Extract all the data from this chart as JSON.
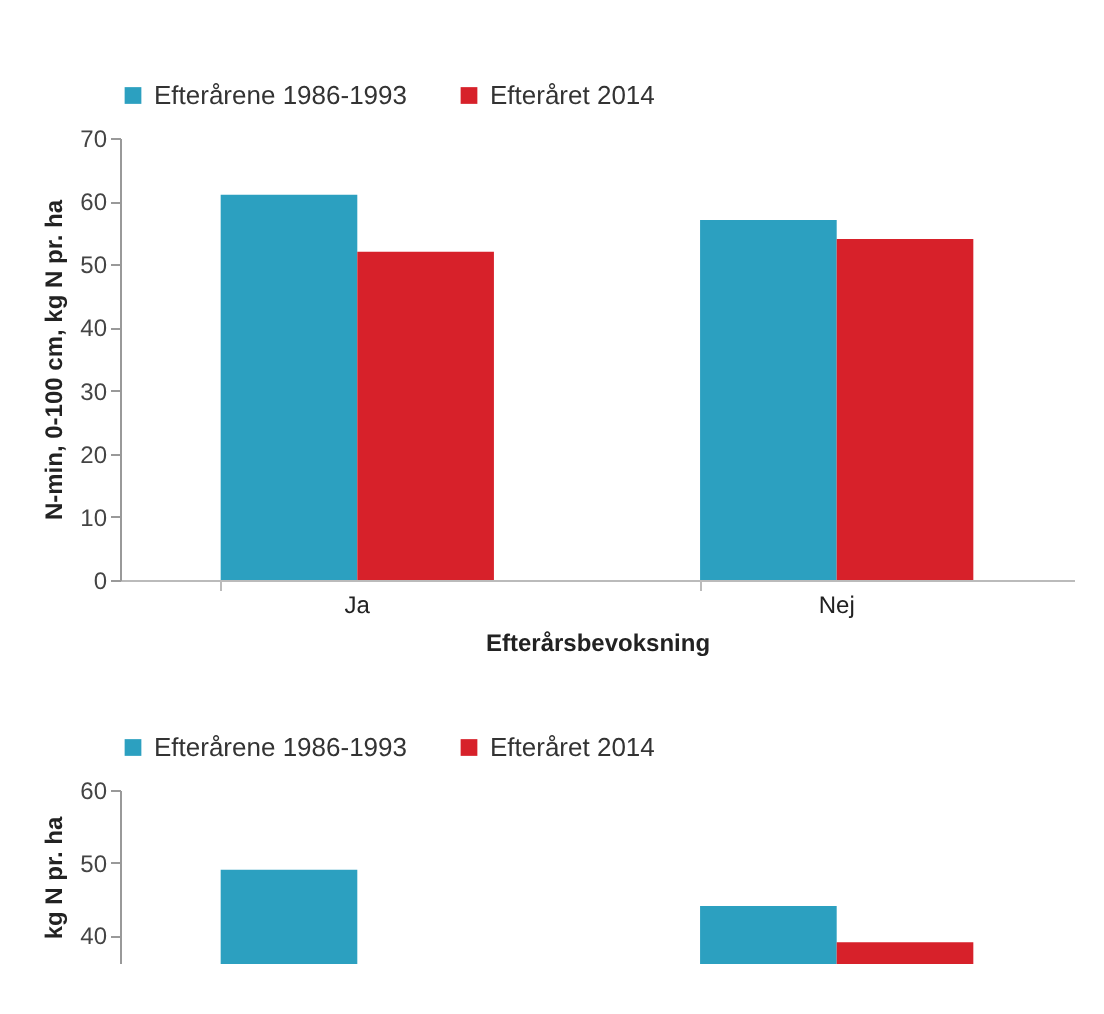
{
  "chart_data": [
    {
      "type": "bar",
      "categories": [
        "Ja",
        "Nej"
      ],
      "xlabel": "Efterårsbevoksning",
      "ylabel": "N-min, 0-100 cm, kg N pr. ha",
      "ylim": [
        0,
        70
      ],
      "yticks": [
        0,
        10,
        20,
        30,
        40,
        50,
        60,
        70
      ],
      "grid": false,
      "legend": "top",
      "series": [
        {
          "name": "Efterårene 1986-1993",
          "color": "#2ca0c0",
          "values": [
            61,
            57
          ]
        },
        {
          "name": "Efteråret 2014",
          "color": "#d7212a",
          "values": [
            52,
            54
          ]
        }
      ]
    },
    {
      "type": "bar",
      "categories": [
        null,
        null
      ],
      "ylabel": "kg N pr. ha",
      "ylim": [
        36,
        60
      ],
      "yticks": [
        40,
        50,
        60
      ],
      "grid": false,
      "legend": "top",
      "tick_labels": "y",
      "series": [
        {
          "name": "Efterårene 1986-1993",
          "color": "#2ca0c0",
          "values": [
            49,
            44
          ]
        },
        {
          "name": "Efteråret 2014",
          "color": "#d7212a",
          "values": [
            null,
            39
          ]
        }
      ]
    }
  ]
}
